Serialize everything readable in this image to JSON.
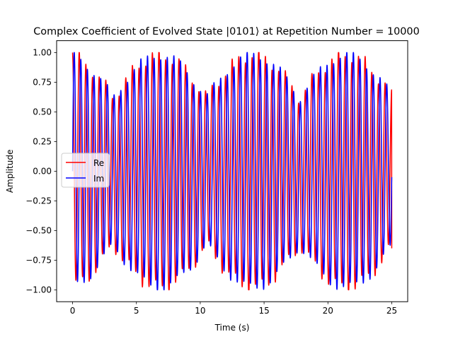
{
  "chart_data": {
    "type": "line",
    "title": "Complex Coefficient of Evolved State |0101⟩ at Repetition Number = 10000",
    "xlabel": "Time (s)",
    "ylabel": "Amplitude",
    "xlim": [
      -1.25,
      26.25
    ],
    "ylim": [
      -1.1,
      1.1
    ],
    "x_ticks": [
      0,
      5,
      10,
      15,
      20,
      25
    ],
    "x_tick_labels": [
      "0",
      "5",
      "10",
      "15",
      "20",
      "25"
    ],
    "y_ticks": [
      -1.0,
      -0.75,
      -0.5,
      -0.25,
      0.0,
      0.25,
      0.5,
      0.75,
      1.0
    ],
    "y_tick_labels": [
      "−1.00",
      "−0.75",
      "−0.50",
      "−0.25",
      "0.00",
      "0.25",
      "0.50",
      "0.75",
      "1.00"
    ],
    "grid": false,
    "legend_position": "center-left",
    "x_range": [
      0,
      25
    ],
    "approx_oscillations": 48,
    "series": [
      {
        "name": "Re",
        "color": "#ff0000",
        "component": "cos",
        "start_value": 1.0,
        "end_value": -0.65
      },
      {
        "name": "Im",
        "color": "#0000ff",
        "component": "sin",
        "start_value": 0.0,
        "end_value": -0.05
      }
    ]
  }
}
